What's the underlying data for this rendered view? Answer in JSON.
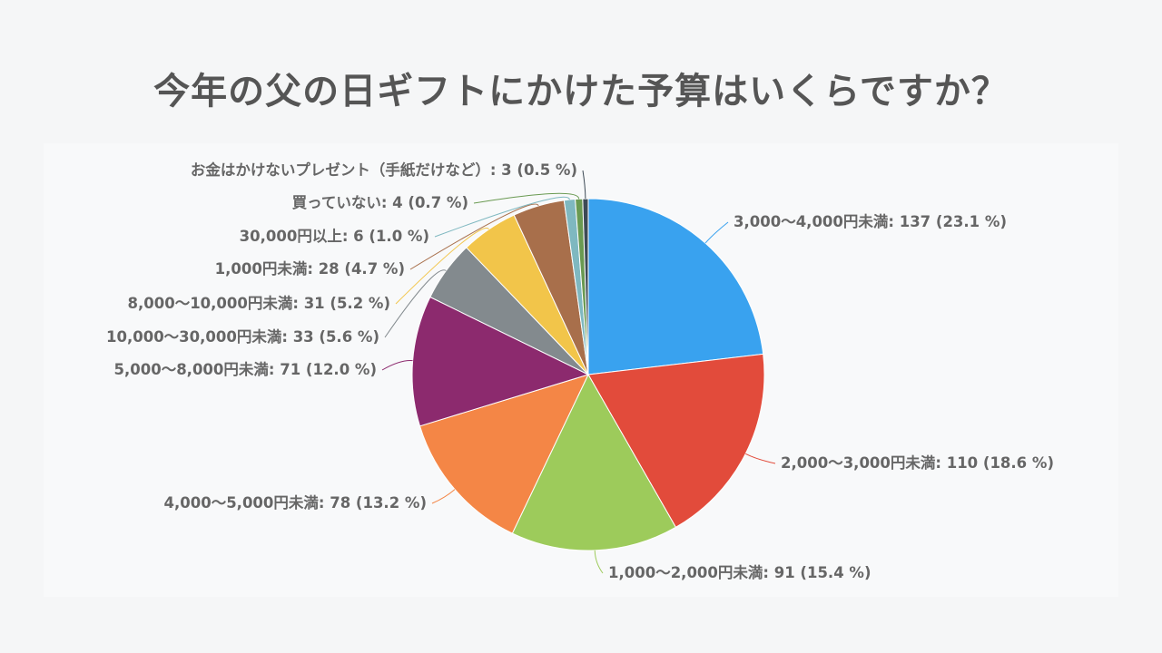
{
  "title": "今年の父の日ギフトにかけた予算はいくらですか？",
  "chart_data": {
    "type": "pie",
    "title": "今年の父の日ギフトにかけた予算はいくらですか？",
    "slices": [
      {
        "label": "3,000〜4,000円未満",
        "value": 137,
        "percent": "23.1 %",
        "color": "#39a2ef"
      },
      {
        "label": "2,000〜3,000円未満",
        "value": 110,
        "percent": "18.6 %",
        "color": "#e24b3b"
      },
      {
        "label": "1,000〜2,000円未満",
        "value": 91,
        "percent": "15.4 %",
        "color": "#9dcb5b"
      },
      {
        "label": "4,000〜5,000円未満",
        "value": 78,
        "percent": "13.2 %",
        "color": "#f48646"
      },
      {
        "label": "5,000〜8,000円未満",
        "value": 71,
        "percent": "12.0 %",
        "color": "#8c2a6e"
      },
      {
        "label": "10,000〜30,000円未満",
        "value": 33,
        "percent": "5.6 %",
        "color": "#838a8e"
      },
      {
        "label": "8,000〜10,000円未満",
        "value": 31,
        "percent": "5.2 %",
        "color": "#f2c54a"
      },
      {
        "label": "1,000円未満",
        "value": 28,
        "percent": "4.7 %",
        "color": "#a86f4b"
      },
      {
        "label": "30,000円以上",
        "value": 6,
        "percent": "1.0 %",
        "color": "#7fb8c0"
      },
      {
        "label": "買っていない",
        "value": 4,
        "percent": "0.7 %",
        "color": "#6a9a52"
      },
      {
        "label": "お金はかけないプレゼント（手紙だけなど）",
        "value": 3,
        "percent": "0.5 %",
        "color": "#3d4a55"
      }
    ]
  }
}
